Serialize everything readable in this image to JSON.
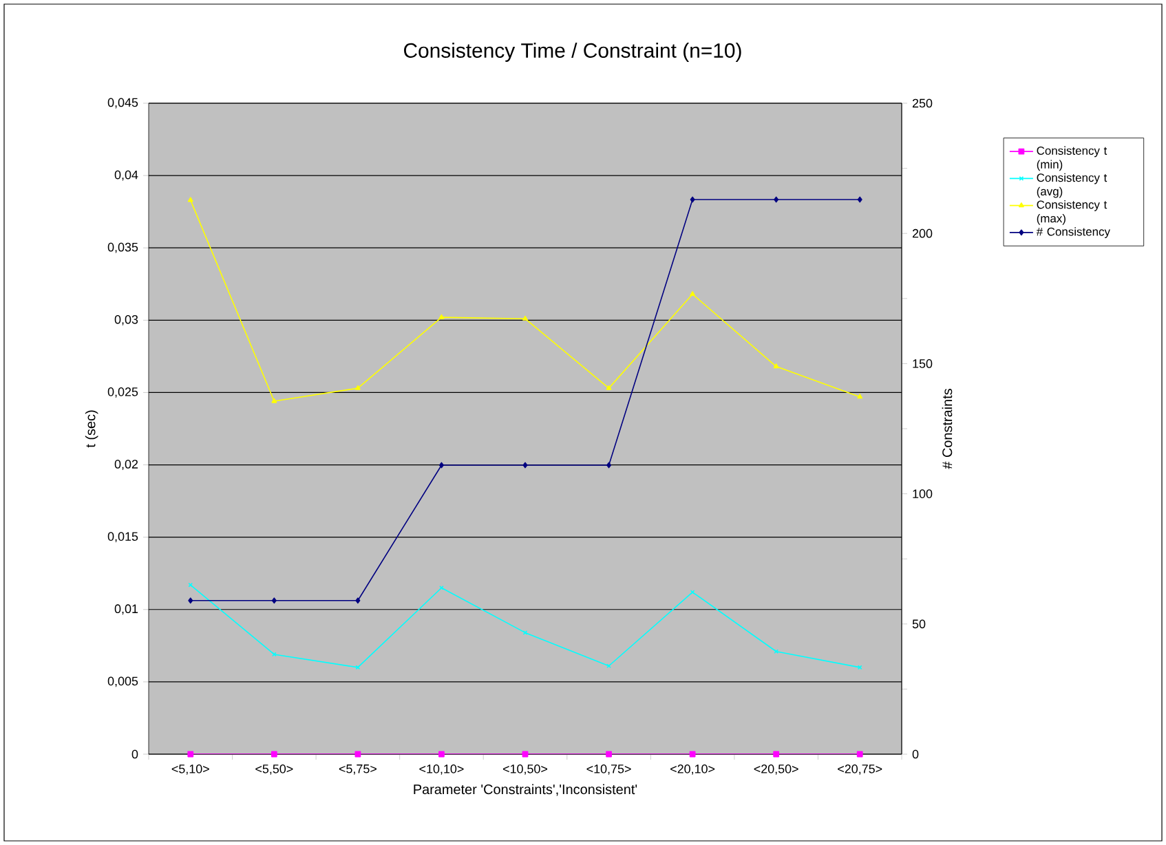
{
  "chart_data": {
    "type": "line",
    "title": "Consistency Time / Constraint (n=10)",
    "xlabel": "Parameter 'Constraints','Inconsistent'",
    "ylabel": "t (sec)",
    "y2label": "# Constraints",
    "categories": [
      "<5,10>",
      "<5,50>",
      "<5,75>",
      "<10,10>",
      "<10,50>",
      "<10,75>",
      "<20,10>",
      "<20,50>",
      "<20,75>"
    ],
    "series": [
      {
        "name": "Consistency t (min)",
        "color": "#ff00ff",
        "marker": "square",
        "values": [
          0,
          0,
          0,
          0,
          0,
          0,
          0,
          0,
          0
        ]
      },
      {
        "name": "Consistency t (avg)",
        "color": "#00ffff",
        "marker": "cross",
        "values": [
          0.0117,
          0.0069,
          0.006,
          0.0115,
          0.0084,
          0.0061,
          0.0112,
          0.0071,
          0.006
        ]
      },
      {
        "name": "Consistency t (max)",
        "color": "#ffff00",
        "marker": "triangle",
        "values": [
          0.0383,
          0.0244,
          0.0253,
          0.0302,
          0.0301,
          0.0253,
          0.0318,
          0.0268,
          0.0247
        ]
      },
      {
        "name": "# Consistency",
        "color": "#000080",
        "marker": "diamond",
        "axis": "y2",
        "values": [
          59,
          59,
          59,
          111,
          111,
          111,
          213,
          213,
          213
        ]
      }
    ],
    "ylim": [
      0,
      0.045
    ],
    "yticks": [
      0,
      {
        "value": 0.005,
        "label": "0,005"
      },
      {
        "value": 0.01,
        "label": "0,01"
      },
      {
        "value": 0.015,
        "label": "0,015"
      },
      {
        "value": 0.02,
        "label": "0,02"
      },
      {
        "value": 0.025,
        "label": "0,025"
      },
      {
        "value": 0.03,
        "label": "0,03"
      },
      {
        "value": 0.035,
        "label": "0,035"
      },
      {
        "value": 0.04,
        "label": "0,04"
      },
      {
        "value": 0.045,
        "label": "0,045"
      }
    ],
    "y2lim": [
      0,
      250
    ],
    "y2ticks": [
      0,
      {
        "value": 25,
        "label": null
      },
      50,
      {
        "value": 75,
        "label": null
      },
      100,
      {
        "value": 125,
        "label": null
      },
      150,
      {
        "value": 175,
        "label": null
      },
      200,
      {
        "value": 225,
        "label": null
      },
      250
    ],
    "grid": "y",
    "legend": "right",
    "line_style": "solid"
  }
}
